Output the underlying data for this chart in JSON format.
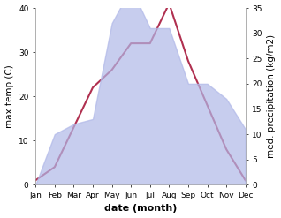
{
  "months": [
    "Jan",
    "Feb",
    "Mar",
    "Apr",
    "May",
    "Jun",
    "Jul",
    "Aug",
    "Sep",
    "Oct",
    "Nov",
    "Dec"
  ],
  "month_indices": [
    0,
    1,
    2,
    3,
    4,
    5,
    6,
    7,
    8,
    9,
    10,
    11
  ],
  "temp": [
    1,
    4,
    13,
    22,
    26,
    32,
    32,
    41,
    28,
    18,
    8,
    1
  ],
  "precip": [
    0,
    10,
    12,
    13,
    32,
    39,
    31,
    31,
    20,
    20,
    17,
    11
  ],
  "temp_color": "#b03050",
  "precip_fill_color": "#b0b8e8",
  "temp_ylim": [
    0,
    40
  ],
  "precip_ylim": [
    0,
    35
  ],
  "temp_yticks": [
    0,
    10,
    20,
    30,
    40
  ],
  "precip_yticks": [
    0,
    5,
    10,
    15,
    20,
    25,
    30,
    35
  ],
  "xlabel": "date (month)",
  "ylabel_left": "max temp (C)",
  "ylabel_right": "med. precipitation (kg/m2)",
  "figsize": [
    3.18,
    2.47
  ],
  "dpi": 100,
  "bg_color": "#ffffff"
}
